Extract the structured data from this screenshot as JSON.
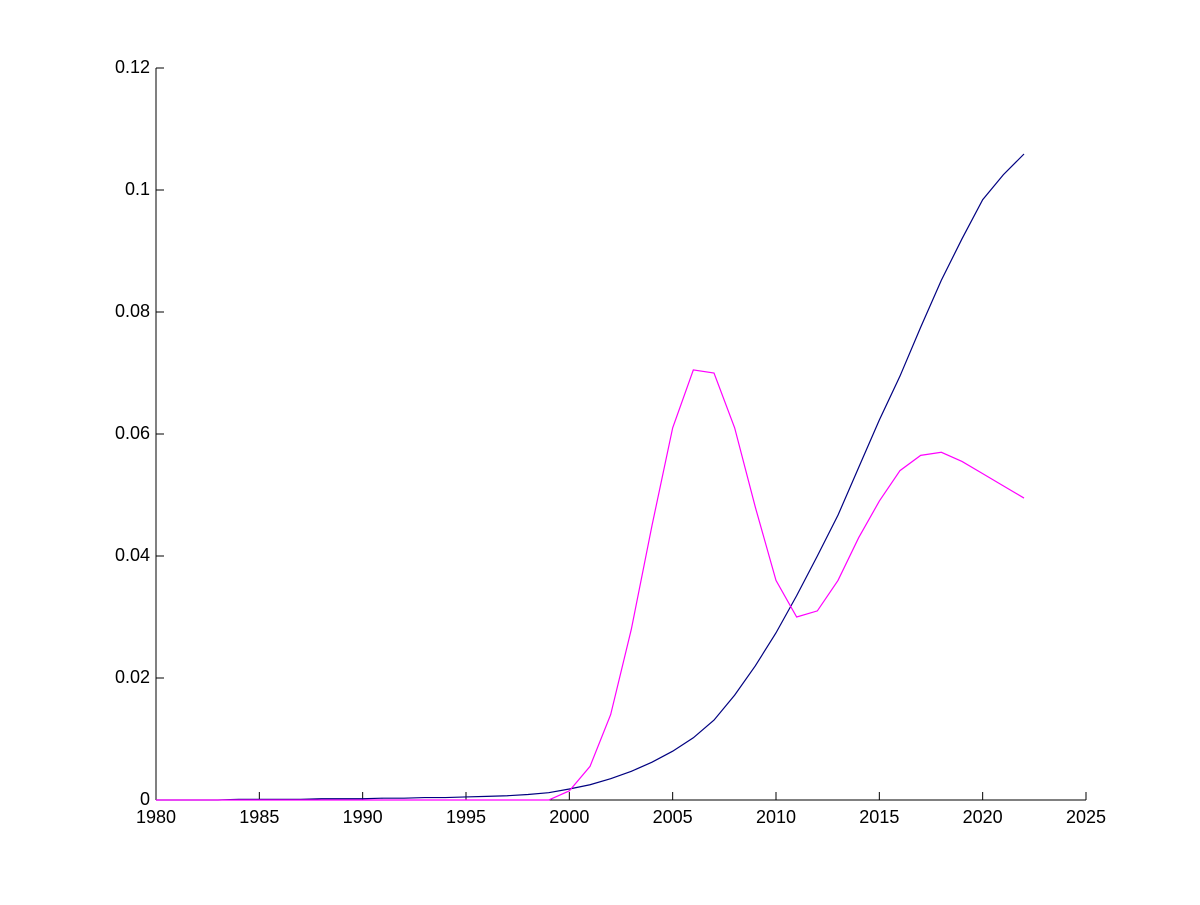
{
  "chart_data": {
    "type": "line",
    "x": [
      1980,
      1981,
      1982,
      1983,
      1984,
      1985,
      1986,
      1987,
      1988,
      1989,
      1990,
      1991,
      1992,
      1993,
      1994,
      1995,
      1996,
      1997,
      1998,
      1999,
      2000,
      2001,
      2002,
      2003,
      2004,
      2005,
      2006,
      2007,
      2008,
      2009,
      2010,
      2011,
      2012,
      2013,
      2014,
      2015,
      2016,
      2017,
      2018,
      2019,
      2020,
      2021,
      2022
    ],
    "series": [
      {
        "color": "#000080",
        "values": [
          0,
          0,
          0,
          0,
          0.0001,
          0.0001,
          0.0001,
          0.0001,
          0.0002,
          0.0002,
          0.0002,
          0.0003,
          0.0003,
          0.0004,
          0.0004,
          0.0005,
          0.0006,
          0.0007,
          0.0009,
          0.0012,
          0.0018,
          0.0025,
          0.0035,
          0.0047,
          0.0062,
          0.008,
          0.0102,
          0.0131,
          0.0172,
          0.022,
          0.0274,
          0.0335,
          0.04,
          0.0467,
          0.0545,
          0.0623,
          0.0695,
          0.0775,
          0.0852,
          0.092,
          0.0984,
          0.1025,
          0.1059
        ]
      },
      {
        "color": "#ff00ff",
        "values": [
          0,
          0,
          0,
          0,
          0,
          0,
          0,
          0,
          0,
          0,
          0,
          0,
          0,
          0,
          0,
          0,
          0,
          0,
          0,
          0,
          0.0015,
          0.0055,
          0.014,
          0.028,
          0.045,
          0.061,
          0.0705,
          0.07,
          0.061,
          0.048,
          0.036,
          0.03,
          0.031,
          0.036,
          0.043,
          0.049,
          0.054,
          0.0565,
          0.057,
          0.0555,
          0.0535,
          0.0515,
          0.0495
        ]
      }
    ],
    "xlim": [
      1980,
      2025
    ],
    "xticks": [
      1980,
      1985,
      1990,
      1995,
      2000,
      2005,
      2010,
      2015,
      2020,
      2025
    ],
    "ylim": [
      0,
      0.12
    ],
    "yticks": [
      0,
      0.02,
      0.04,
      0.06,
      0.08,
      0.1,
      0.12
    ]
  }
}
